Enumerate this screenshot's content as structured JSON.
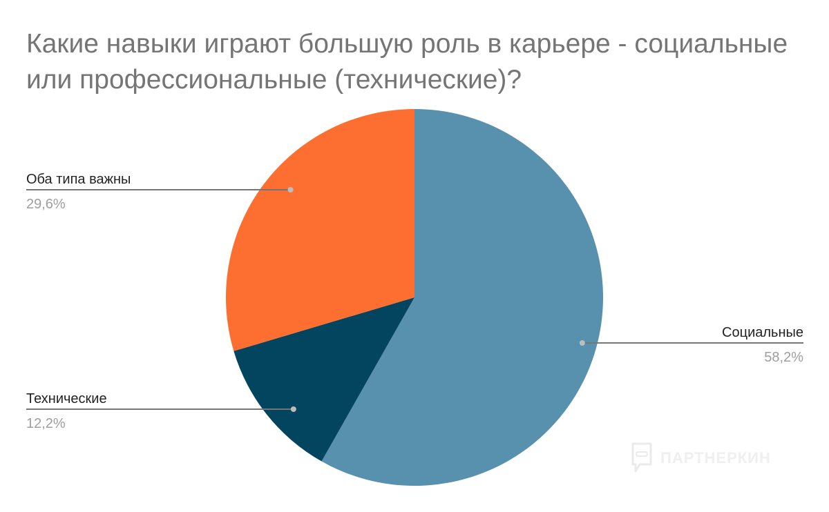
{
  "chart_data": {
    "type": "pie",
    "title": "Какие навыки играют большую роль в карьере - социальные или профессиональные (технические)?",
    "slices": [
      {
        "label": "Социальные",
        "value": 58.2,
        "display": "58,2%",
        "color": "#5891ae"
      },
      {
        "label": "Технические",
        "value": 12.2,
        "display": "12,2%",
        "color": "#03445f"
      },
      {
        "label": "Оба типа важны",
        "value": 29.6,
        "display": "29,6%",
        "color": "#fc6f31"
      }
    ],
    "start_angle_deg": 0,
    "direction": "clockwise",
    "legend": "none",
    "labels": "outside with leader lines"
  },
  "watermark": {
    "text": "ПАРТНЕРКИН",
    "icon": "chat-bubble-icon"
  }
}
